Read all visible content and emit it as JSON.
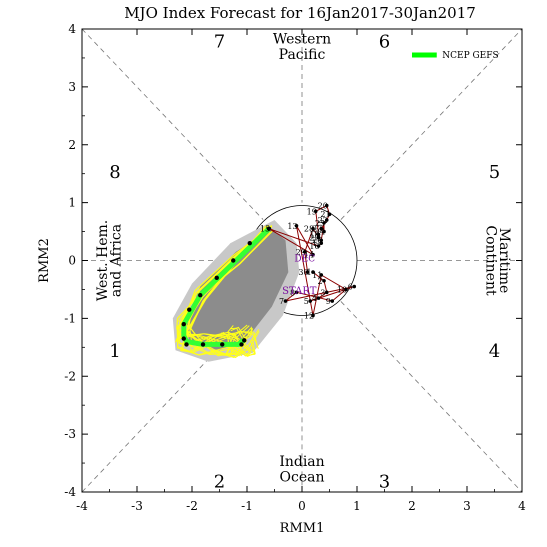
{
  "chart_data": {
    "type": "scatter",
    "title": "MJO Index Forecast for 16Jan2017-30Jan2017",
    "xlabel": "RMM1",
    "ylabel": "RMM2",
    "xlim": [
      -4,
      4
    ],
    "ylim": [
      -4,
      4
    ],
    "x_ticks": [
      "-4",
      "-3",
      "-2",
      "-1",
      "0",
      "1",
      "2",
      "3",
      "4"
    ],
    "y_ticks": [
      "-4",
      "-3",
      "-2",
      "-1",
      "0",
      "1",
      "2",
      "3",
      "4"
    ],
    "phases": [
      {
        "label": "1",
        "x": -3.4,
        "y": -1.55
      },
      {
        "label": "2",
        "x": -1.5,
        "y": -3.8
      },
      {
        "label": "3",
        "x": 1.5,
        "y": -3.8
      },
      {
        "label": "4",
        "x": 3.5,
        "y": -1.55
      },
      {
        "label": "5",
        "x": 3.5,
        "y": 1.55
      },
      {
        "label": "6",
        "x": 1.5,
        "y": 3.8
      },
      {
        "label": "7",
        "x": -1.5,
        "y": 3.8
      },
      {
        "label": "8",
        "x": -3.4,
        "y": 1.55
      }
    ],
    "regions": {
      "top": [
        "Western",
        "Pacific"
      ],
      "bottom": [
        "Indian",
        "Ocean"
      ],
      "left": [
        "West. Hem.",
        "and Africa"
      ],
      "right": [
        "Maritime",
        "Continent"
      ]
    },
    "legend": {
      "label": "NCEP GEFS",
      "color": "#00ff00",
      "placement": "top-right"
    },
    "colors": {
      "observed": "#8b0000",
      "forecast": "#7a0ea0",
      "members": "#ffff1a",
      "spread_light": "#c8c8c8",
      "spread_dark": "#8c8c8c",
      "ensemble_mean": "#33ff33"
    },
    "start_label": "START",
    "end_label": "DEC",
    "observed": [
      {
        "d": "1",
        "x": 0.2,
        "y": -0.2
      },
      {
        "d": "2",
        "x": 0.4,
        "y": -0.35
      },
      {
        "d": "3",
        "x": 0.45,
        "y": -0.55
      },
      {
        "d": "4",
        "x": 0.3,
        "y": -0.65
      },
      {
        "d": "5",
        "x": 0.15,
        "y": -0.7
      },
      {
        "d": "6",
        "x": 0.95,
        "y": -0.45
      },
      {
        "d": "7",
        "x": -0.3,
        "y": -0.7
      },
      {
        "d": "8",
        "x": -0.1,
        "y": -0.55
      },
      {
        "d": "9",
        "x": 0.55,
        "y": -0.7
      },
      {
        "d": "10",
        "x": 0.8,
        "y": -0.5
      },
      {
        "d": "11",
        "x": 0.35,
        "y": -0.25
      },
      {
        "d": "12",
        "x": 0.2,
        "y": -0.95
      },
      {
        "d": "13",
        "x": -0.1,
        "y": 0.6
      },
      {
        "d": "14",
        "x": 0.2,
        "y": 0.1
      },
      {
        "d": "15",
        "x": -0.6,
        "y": 0.55
      },
      {
        "d": "16",
        "x": 0.3,
        "y": 0.25
      },
      {
        "d": "17",
        "x": 0.35,
        "y": 0.3
      },
      {
        "d": "18",
        "x": 0.3,
        "y": 0.45
      },
      {
        "d": "19",
        "x": 0.25,
        "y": 0.85
      },
      {
        "d": "20",
        "x": 0.45,
        "y": 0.95
      },
      {
        "d": "21",
        "x": 0.5,
        "y": 0.8
      },
      {
        "d": "22",
        "x": 0.45,
        "y": 0.7
      },
      {
        "d": "23",
        "x": 0.35,
        "y": 0.55
      },
      {
        "d": "24",
        "x": 0.4,
        "y": 0.5
      },
      {
        "d": "25",
        "x": 0.4,
        "y": 0.65
      },
      {
        "d": "26",
        "x": 0.35,
        "y": 0.35
      },
      {
        "d": "27",
        "x": 0.3,
        "y": 0.4
      },
      {
        "d": "28",
        "x": 0.2,
        "y": 0.55
      },
      {
        "d": "29",
        "x": 0.05,
        "y": 0.15
      },
      {
        "d": "30",
        "x": 0.1,
        "y": -0.2
      }
    ],
    "ensemble_mean": [
      {
        "x": -0.6,
        "y": 0.55
      },
      {
        "x": -1.2,
        "y": 0.0
      },
      {
        "x": -1.85,
        "y": -0.6
      },
      {
        "x": -2.15,
        "y": -1.1
      },
      {
        "x": -2.15,
        "y": -1.3
      },
      {
        "x": -2.1,
        "y": -1.4
      },
      {
        "x": -1.8,
        "y": -1.45
      },
      {
        "x": -1.4,
        "y": -1.45
      },
      {
        "x": -1.15,
        "y": -1.45
      },
      {
        "x": -1.1,
        "y": -1.4
      },
      {
        "x": -1.05,
        "y": -1.38
      }
    ],
    "forecast_points": [
      {
        "x": -0.6,
        "y": 0.55
      },
      {
        "x": -0.95,
        "y": 0.3
      },
      {
        "x": -1.25,
        "y": 0.0
      },
      {
        "x": -1.55,
        "y": -0.3
      },
      {
        "x": -1.85,
        "y": -0.6
      },
      {
        "x": -2.05,
        "y": -0.85
      },
      {
        "x": -2.15,
        "y": -1.1
      },
      {
        "x": -2.15,
        "y": -1.35
      },
      {
        "x": -2.1,
        "y": -1.45
      },
      {
        "x": -1.8,
        "y": -1.45
      },
      {
        "x": -1.45,
        "y": -1.45
      },
      {
        "x": -1.1,
        "y": -1.45
      },
      {
        "x": -1.05,
        "y": -1.38
      }
    ]
  }
}
